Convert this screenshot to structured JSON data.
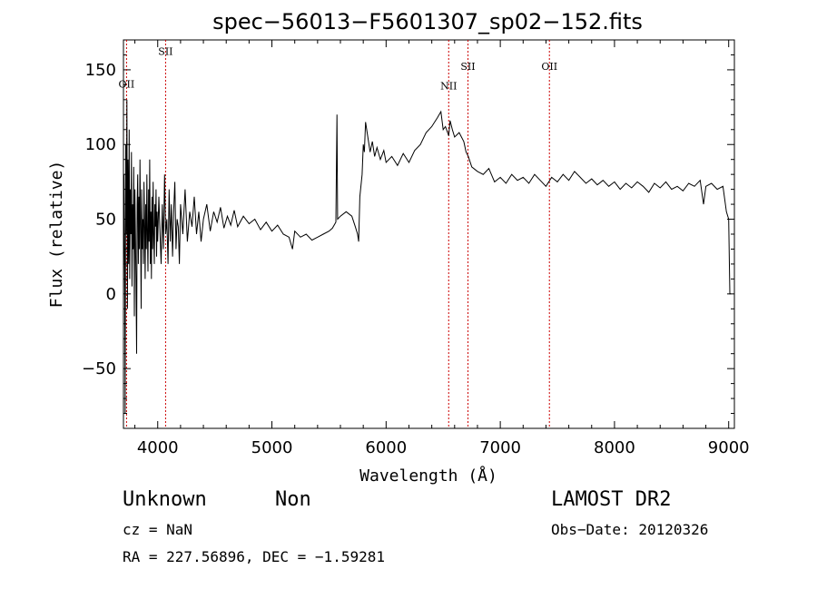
{
  "chart_data": {
    "type": "line",
    "title": "spec−56013−F5601307_sp02−152.fits",
    "xlabel": "Wavelength (Å)",
    "ylabel": "Flux (relative)",
    "xlim": [
      3700,
      9050
    ],
    "ylim": [
      -90,
      170
    ],
    "xticks": [
      {
        "value": 4000,
        "label": "4000"
      },
      {
        "value": 5000,
        "label": "5000"
      },
      {
        "value": 6000,
        "label": "6000"
      },
      {
        "value": 7000,
        "label": "7000"
      },
      {
        "value": 8000,
        "label": "8000"
      },
      {
        "value": 9000,
        "label": "9000"
      }
    ],
    "yticks": [
      {
        "value": -50,
        "label": "−50"
      },
      {
        "value": 0,
        "label": "0"
      },
      {
        "value": 50,
        "label": "50"
      },
      {
        "value": 100,
        "label": "100"
      },
      {
        "value": 150,
        "label": "150"
      }
    ],
    "line_color": "#000000",
    "marker_color": "#cc0000",
    "spectral_lines": [
      {
        "label": "OII",
        "wavelength": 3727,
        "label_y": 138
      },
      {
        "label": "SII",
        "wavelength": 4069,
        "label_y": 160
      },
      {
        "label": "NII",
        "wavelength": 6548,
        "label_y": 137
      },
      {
        "label": "SII",
        "wavelength": 6717,
        "label_y": 150
      },
      {
        "label": "OII",
        "wavelength": 7430,
        "label_y": 150
      }
    ],
    "series": [
      {
        "points": [
          [
            3700,
            0
          ],
          [
            3705,
            80
          ],
          [
            3710,
            20
          ],
          [
            3715,
            -80
          ],
          [
            3720,
            100
          ],
          [
            3725,
            40
          ],
          [
            3730,
            130
          ],
          [
            3735,
            -10
          ],
          [
            3740,
            90
          ],
          [
            3745,
            20
          ],
          [
            3750,
            110
          ],
          [
            3755,
            10
          ],
          [
            3760,
            70
          ],
          [
            3765,
            40
          ],
          [
            3770,
            95
          ],
          [
            3775,
            5
          ],
          [
            3780,
            60
          ],
          [
            3785,
            30
          ],
          [
            3790,
            85
          ],
          [
            3795,
            -15
          ],
          [
            3800,
            70
          ],
          [
            3805,
            40
          ],
          [
            3810,
            10
          ],
          [
            3815,
            -40
          ],
          [
            3820,
            60
          ],
          [
            3825,
            80
          ],
          [
            3830,
            20
          ],
          [
            3835,
            65
          ],
          [
            3840,
            30
          ],
          [
            3845,
            90
          ],
          [
            3850,
            40
          ],
          [
            3855,
            -10
          ],
          [
            3860,
            70
          ],
          [
            3865,
            30
          ],
          [
            3870,
            50
          ],
          [
            3875,
            20
          ],
          [
            3880,
            75
          ],
          [
            3885,
            45
          ],
          [
            3890,
            10
          ],
          [
            3895,
            60
          ],
          [
            3900,
            30
          ],
          [
            3905,
            80
          ],
          [
            3910,
            40
          ],
          [
            3915,
            15
          ],
          [
            3920,
            70
          ],
          [
            3925,
            35
          ],
          [
            3930,
            90
          ],
          [
            3935,
            20
          ],
          [
            3940,
            55
          ],
          [
            3945,
            10
          ],
          [
            3950,
            65
          ],
          [
            3955,
            30
          ],
          [
            3960,
            75
          ],
          [
            3965,
            40
          ],
          [
            3970,
            20
          ],
          [
            3975,
            60
          ],
          [
            3980,
            45
          ],
          [
            3985,
            70
          ],
          [
            3990,
            25
          ],
          [
            3995,
            55
          ],
          [
            4000,
            35
          ],
          [
            4010,
            65
          ],
          [
            4020,
            40
          ],
          [
            4030,
            20
          ],
          [
            4040,
            60
          ],
          [
            4050,
            30
          ],
          [
            4060,
            80
          ],
          [
            4070,
            40
          ],
          [
            4080,
            50
          ],
          [
            4090,
            20
          ],
          [
            4100,
            70
          ],
          [
            4110,
            35
          ],
          [
            4120,
            60
          ],
          [
            4130,
            25
          ],
          [
            4140,
            55
          ],
          [
            4150,
            75
          ],
          [
            4160,
            30
          ],
          [
            4170,
            50
          ],
          [
            4180,
            45
          ],
          [
            4190,
            20
          ],
          [
            4200,
            60
          ],
          [
            4220,
            40
          ],
          [
            4240,
            70
          ],
          [
            4260,
            35
          ],
          [
            4280,
            55
          ],
          [
            4300,
            45
          ],
          [
            4320,
            65
          ],
          [
            4340,
            40
          ],
          [
            4360,
            55
          ],
          [
            4380,
            35
          ],
          [
            4400,
            50
          ],
          [
            4430,
            60
          ],
          [
            4460,
            42
          ],
          [
            4490,
            55
          ],
          [
            4520,
            48
          ],
          [
            4550,
            58
          ],
          [
            4580,
            44
          ],
          [
            4610,
            52
          ],
          [
            4640,
            46
          ],
          [
            4670,
            56
          ],
          [
            4700,
            45
          ],
          [
            4750,
            52
          ],
          [
            4800,
            47
          ],
          [
            4850,
            50
          ],
          [
            4900,
            43
          ],
          [
            4950,
            48
          ],
          [
            5000,
            42
          ],
          [
            5050,
            46
          ],
          [
            5100,
            40
          ],
          [
            5150,
            38
          ],
          [
            5180,
            30
          ],
          [
            5200,
            42
          ],
          [
            5250,
            38
          ],
          [
            5300,
            40
          ],
          [
            5350,
            36
          ],
          [
            5400,
            38
          ],
          [
            5450,
            40
          ],
          [
            5500,
            42
          ],
          [
            5530,
            44
          ],
          [
            5560,
            48
          ],
          [
            5570,
            120
          ],
          [
            5575,
            50
          ],
          [
            5600,
            52
          ],
          [
            5650,
            55
          ],
          [
            5700,
            52
          ],
          [
            5730,
            45
          ],
          [
            5750,
            40
          ],
          [
            5760,
            35
          ],
          [
            5770,
            65
          ],
          [
            5790,
            80
          ],
          [
            5800,
            100
          ],
          [
            5810,
            95
          ],
          [
            5820,
            115
          ],
          [
            5840,
            105
          ],
          [
            5860,
            95
          ],
          [
            5880,
            102
          ],
          [
            5900,
            92
          ],
          [
            5920,
            98
          ],
          [
            5950,
            90
          ],
          [
            5980,
            96
          ],
          [
            6000,
            88
          ],
          [
            6050,
            92
          ],
          [
            6100,
            86
          ],
          [
            6150,
            94
          ],
          [
            6200,
            88
          ],
          [
            6250,
            96
          ],
          [
            6300,
            100
          ],
          [
            6350,
            108
          ],
          [
            6400,
            112
          ],
          [
            6450,
            118
          ],
          [
            6480,
            122
          ],
          [
            6500,
            110
          ],
          [
            6520,
            112
          ],
          [
            6548,
            106
          ],
          [
            6560,
            116
          ],
          [
            6580,
            110
          ],
          [
            6600,
            105
          ],
          [
            6640,
            108
          ],
          [
            6680,
            102
          ],
          [
            6700,
            95
          ],
          [
            6720,
            92
          ],
          [
            6750,
            85
          ],
          [
            6800,
            82
          ],
          [
            6850,
            80
          ],
          [
            6900,
            84
          ],
          [
            6950,
            75
          ],
          [
            7000,
            78
          ],
          [
            7050,
            74
          ],
          [
            7100,
            80
          ],
          [
            7150,
            76
          ],
          [
            7200,
            78
          ],
          [
            7250,
            74
          ],
          [
            7300,
            80
          ],
          [
            7350,
            76
          ],
          [
            7400,
            72
          ],
          [
            7450,
            78
          ],
          [
            7500,
            75
          ],
          [
            7550,
            80
          ],
          [
            7600,
            76
          ],
          [
            7650,
            82
          ],
          [
            7700,
            78
          ],
          [
            7750,
            74
          ],
          [
            7800,
            77
          ],
          [
            7850,
            73
          ],
          [
            7900,
            76
          ],
          [
            7950,
            72
          ],
          [
            8000,
            75
          ],
          [
            8050,
            70
          ],
          [
            8100,
            74
          ],
          [
            8150,
            71
          ],
          [
            8200,
            75
          ],
          [
            8250,
            72
          ],
          [
            8300,
            68
          ],
          [
            8350,
            74
          ],
          [
            8400,
            71
          ],
          [
            8450,
            75
          ],
          [
            8500,
            70
          ],
          [
            8550,
            72
          ],
          [
            8600,
            69
          ],
          [
            8650,
            74
          ],
          [
            8700,
            72
          ],
          [
            8750,
            76
          ],
          [
            8780,
            60
          ],
          [
            8800,
            72
          ],
          [
            8850,
            74
          ],
          [
            8900,
            70
          ],
          [
            8950,
            72
          ],
          [
            8980,
            55
          ],
          [
            9000,
            50
          ],
          [
            9010,
            0
          ],
          [
            9020,
            0
          ]
        ]
      }
    ]
  },
  "footer": {
    "class_label": "Unknown",
    "subclass_label": "Non",
    "survey": "LAMOST DR2",
    "cz": "cz = NaN",
    "obs_date": "Obs−Date: 20120326",
    "coords": "RA = 227.56896, DEC =  −1.59281"
  }
}
